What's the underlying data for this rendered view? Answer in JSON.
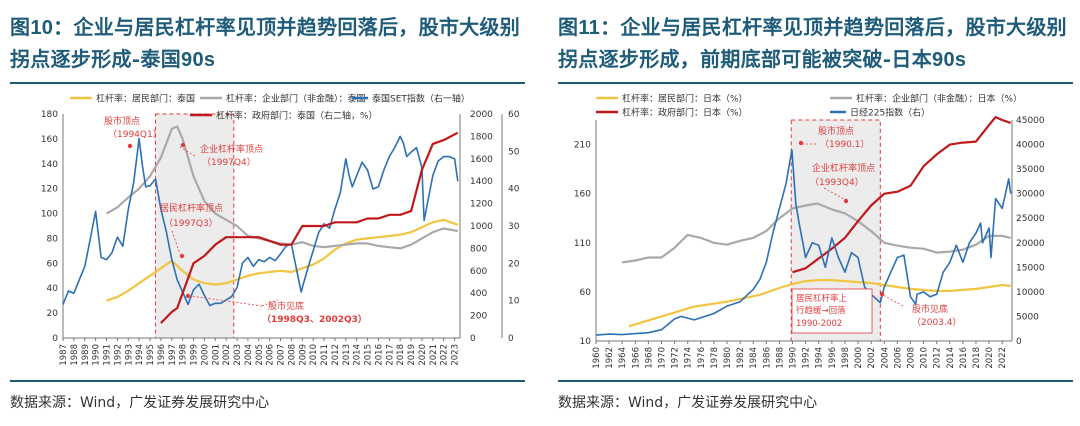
{
  "panels": [
    {
      "title_prefix": "图",
      "title_num": "10",
      "title_text": "：企业与居民杠杆率见顶并趋势回落后，股市大级别拐点逐步形成-泰国",
      "title_bold_tail": "90s",
      "source": "数据来源：Wind，广发证券发展研究中心"
    },
    {
      "title_prefix": "图",
      "title_num": "11",
      "title_text": "：企业与居民杠杆率见顶并趋势回落后，股市大级别拐点逐步形成，前期底部可能被突破-日本",
      "title_bold_tail": "90s",
      "source": "数据来源：Wind，广发证券发展研究中心"
    }
  ],
  "colors": {
    "household": "#f1c542",
    "corporate": "#a9a9a9",
    "government": "#c0181b",
    "index": "#2c70b5",
    "annotation": "#e33b3b"
  },
  "chart_data": [
    {
      "type": "line",
      "legend": [
        "杠杆率：居民部门：泰国",
        "杠杆率：企业部门（非金融）：泰国",
        "泰国SET指数（右一轴）",
        "杠杆率：政府部门：泰国（右二轴，%）"
      ],
      "x_ticks": [
        "1987",
        "1988",
        "1989",
        "1990",
        "1991",
        "1992",
        "1993",
        "1994",
        "1995",
        "1996",
        "1997",
        "1998",
        "1999",
        "2000",
        "2001",
        "2002",
        "2003",
        "2004",
        "2005",
        "2006",
        "2007",
        "2008",
        "2009",
        "2010",
        "2011",
        "2012",
        "2013",
        "2014",
        "2015",
        "2016",
        "2017",
        "2018",
        "2019",
        "2020",
        "2021",
        "2022",
        "2023"
      ],
      "xlim": [
        1987,
        2023.5
      ],
      "y_left": {
        "ticks": [
          "0",
          "20",
          "40",
          "60",
          "80",
          "100",
          "120",
          "140",
          "160",
          "180"
        ],
        "lim": [
          0,
          180
        ]
      },
      "y_right1": {
        "ticks": [
          "0",
          "200",
          "400",
          "600",
          "800",
          "1000",
          "1200",
          "1400",
          "1600",
          "1800",
          "2000"
        ],
        "lim": [
          0,
          2000
        ]
      },
      "y_right2": {
        "ticks": [
          "0",
          "10",
          "20",
          "30",
          "40",
          "50",
          "60"
        ],
        "lim": [
          0,
          60
        ]
      },
      "shade_x": [
        1995.5,
        2002.7
      ],
      "series": [
        {
          "name": "杠杆率：居民部门：泰国",
          "axis": "left",
          "color": "household",
          "x": [
            1991,
            1992,
            1993,
            1994,
            1995,
            1996,
            1997,
            1998,
            1999,
            2000,
            2001,
            2002,
            2003,
            2004,
            2005,
            2006,
            2007,
            2008,
            2009,
            2010,
            2011,
            2012,
            2013,
            2014,
            2015,
            2016,
            2017,
            2018,
            2019,
            2020,
            2021,
            2022,
            2023.3
          ],
          "y": [
            30,
            33,
            38,
            44,
            50,
            56,
            62,
            54,
            47,
            44,
            43,
            44,
            47,
            50,
            52,
            53,
            54,
            53,
            56,
            59,
            64,
            71,
            76,
            79,
            80,
            81,
            82,
            83,
            85,
            89,
            93,
            95,
            91
          ]
        },
        {
          "name": "杠杆率：企业部门（非金融）：泰国",
          "axis": "left",
          "color": "corporate",
          "x": [
            1991,
            1992,
            1993,
            1994,
            1995,
            1996,
            1997,
            1997.5,
            1998,
            1999,
            2000,
            2001,
            2002,
            2003,
            2004,
            2005,
            2006,
            2007,
            2008,
            2009,
            2010,
            2011,
            2012,
            2013,
            2014,
            2015,
            2016,
            2017,
            2018,
            2019,
            2020,
            2021,
            2022,
            2023.3
          ],
          "y": [
            100,
            105,
            113,
            120,
            130,
            145,
            168,
            170,
            160,
            130,
            110,
            100,
            95,
            90,
            82,
            80,
            78,
            76,
            75,
            77,
            74,
            73,
            74,
            75,
            76,
            76,
            74,
            73,
            72,
            75,
            80,
            85,
            88,
            86
          ]
        },
        {
          "name": "泰国SET指数（右一轴）",
          "axis": "right1",
          "color": "index",
          "x": [
            1987,
            1987.5,
            1988,
            1988.5,
            1989,
            1989.5,
            1990,
            1990.5,
            1991,
            1991.5,
            1992,
            1992.5,
            1993,
            1993.5,
            1994,
            1994.3,
            1994.6,
            1995,
            1995.5,
            1996,
            1996.5,
            1997,
            1997.5,
            1998,
            1998.5,
            1999,
            1999.5,
            2000,
            2000.5,
            2001,
            2001.5,
            2002,
            2002.5,
            2003,
            2003.5,
            2004,
            2004.5,
            2005,
            2005.5,
            2006,
            2006.5,
            2007,
            2007.5,
            2008,
            2008.5,
            2008.9,
            2009,
            2009.5,
            2010,
            2010.5,
            2011,
            2011.5,
            2012,
            2012.5,
            2013,
            2013.3,
            2013.6,
            2014,
            2014.5,
            2015,
            2015.5,
            2016,
            2016.5,
            2017,
            2017.5,
            2018,
            2018.3,
            2018.6,
            2019,
            2019.5,
            2020,
            2020.2,
            2020.5,
            2021,
            2021.5,
            2022,
            2022.5,
            2023,
            2023.3
          ],
          "y": [
            300,
            420,
            400,
            520,
            640,
            880,
            1130,
            720,
            700,
            760,
            900,
            820,
            1150,
            1390,
            1780,
            1540,
            1350,
            1360,
            1420,
            1150,
            950,
            700,
            520,
            410,
            300,
            430,
            480,
            380,
            290,
            310,
            310,
            340,
            370,
            450,
            670,
            720,
            640,
            700,
            680,
            720,
            690,
            750,
            820,
            840,
            600,
            410,
            450,
            620,
            780,
            940,
            1020,
            980,
            1150,
            1300,
            1600,
            1450,
            1350,
            1450,
            1570,
            1500,
            1330,
            1350,
            1500,
            1620,
            1700,
            1800,
            1740,
            1620,
            1660,
            1700,
            1520,
            1050,
            1200,
            1450,
            1580,
            1620,
            1620,
            1600,
            1400
          ]
        },
        {
          "name": "杠杆率：政府部门：泰国（右二轴，%）",
          "axis": "right2",
          "color": "government",
          "x": [
            1996,
            1997,
            1997.5,
            1998,
            1998.5,
            1999,
            2000,
            2001,
            2002,
            2003,
            2004,
            2005,
            2006,
            2007,
            2008,
            2009,
            2010,
            2011,
            2012,
            2013,
            2014,
            2015,
            2016,
            2017,
            2018,
            2019,
            2020,
            2021,
            2022,
            2023.3
          ],
          "y": [
            4,
            7,
            8,
            12,
            16,
            20,
            22,
            25,
            27,
            27,
            27,
            27,
            26,
            25,
            25,
            30,
            30,
            30,
            31,
            31,
            31,
            32,
            32,
            33,
            33,
            34,
            45,
            52,
            53,
            55
          ]
        }
      ],
      "annotations": [
        {
          "text": "股市顶点",
          "year": "1994Q1"
        },
        {
          "text": "企业杠杆率顶点",
          "year": "1997Q4"
        },
        {
          "text": "居民杠杆率顶点",
          "year": "1997Q3"
        },
        {
          "text": "股市见底",
          "year": "1998Q3、2002Q3"
        }
      ]
    },
    {
      "type": "line",
      "legend": [
        "杠杆率：居民部门：日本（%）",
        "杠杆率：企业部门（非金融）：日本（%）",
        "杠杆率：政府部门：日本（%）",
        "日经225指数（右）"
      ],
      "x_ticks": [
        "1960",
        "1962",
        "1964",
        "1966",
        "1968",
        "1970",
        "1972",
        "1974",
        "1976",
        "1978",
        "1980",
        "1982",
        "1984",
        "1986",
        "1988",
        "1990",
        "1992",
        "1994",
        "1996",
        "1998",
        "2000",
        "2002",
        "2004",
        "2006",
        "2008",
        "2010",
        "2012",
        "2014",
        "2016",
        "2018",
        "2020",
        "2022"
      ],
      "xlim": [
        1960,
        2023.5
      ],
      "y_left": {
        "ticks": [
          "10",
          "60",
          "110",
          "160",
          "210"
        ],
        "lim": [
          10,
          235
        ]
      },
      "y_right1": {
        "ticks": [
          "0",
          "5000",
          "10000",
          "15000",
          "20000",
          "25000",
          "30000",
          "35000",
          "40000",
          "45000"
        ],
        "lim": [
          0,
          45000
        ]
      },
      "shade_x": [
        1989.8,
        2003.4
      ],
      "series": [
        {
          "name": "杠杆率：居民部门：日本（%）",
          "axis": "left",
          "color": "household",
          "x": [
            1965,
            1970,
            1975,
            1980,
            1985,
            1988,
            1990,
            1992,
            1994,
            1996,
            1998,
            2000,
            2002,
            2004,
            2006,
            2008,
            2010,
            2012,
            2014,
            2016,
            2018,
            2020,
            2022,
            2023.3
          ],
          "y": [
            25,
            35,
            45,
            50,
            57,
            64,
            68,
            71,
            72,
            72,
            71,
            70,
            69,
            67,
            65,
            63,
            62,
            61,
            61,
            62,
            63,
            65,
            67,
            66
          ]
        },
        {
          "name": "杠杆率：企业部门（非金融）：日本（%）",
          "axis": "left",
          "color": "corporate",
          "x": [
            1964,
            1966,
            1968,
            1970,
            1972,
            1974,
            1976,
            1978,
            1980,
            1982,
            1984,
            1986,
            1988,
            1990,
            1992,
            1993.8,
            1996,
            1998,
            2000,
            2002,
            2004,
            2006,
            2008,
            2010,
            2012,
            2014,
            2016,
            2018,
            2020,
            2022,
            2023.3
          ],
          "y": [
            90,
            92,
            95,
            95,
            105,
            118,
            115,
            110,
            108,
            112,
            115,
            122,
            135,
            145,
            148,
            150,
            144,
            140,
            132,
            122,
            110,
            107,
            105,
            104,
            100,
            101,
            103,
            108,
            117,
            117,
            115
          ]
        },
        {
          "name": "杠杆率：政府部门：日本（%）",
          "axis": "left",
          "color": "government",
          "x": [
            1990,
            1992,
            1994,
            1996,
            1998,
            2000,
            2002,
            2004,
            2006,
            2008,
            2010,
            2012,
            2014,
            2016,
            2018,
            2020,
            2021,
            2022,
            2023.3
          ],
          "y": [
            80,
            84,
            94,
            104,
            115,
            132,
            148,
            160,
            162,
            168,
            188,
            200,
            210,
            212,
            213,
            230,
            238,
            235,
            232
          ]
        },
        {
          "name": "日经225指数（右）",
          "axis": "right1",
          "color": "index",
          "x": [
            1960,
            1962,
            1964,
            1966,
            1968,
            1970,
            1972,
            1973,
            1975,
            1978,
            1980,
            1982,
            1984,
            1985,
            1986,
            1987,
            1988,
            1989,
            1989.9,
            1990.5,
            1991,
            1992,
            1993,
            1994,
            1995,
            1996,
            1997,
            1998,
            1999,
            2000,
            2001,
            2002,
            2003.4,
            2004,
            2005,
            2006,
            2007,
            2008,
            2008.8,
            2009,
            2010,
            2011,
            2012,
            2013,
            2014,
            2015,
            2016,
            2017,
            2018,
            2018.7,
            2019,
            2020,
            2020.3,
            2021,
            2022,
            2023,
            2023.3
          ],
          "y": [
            1200,
            1400,
            1300,
            1500,
            1700,
            2300,
            4500,
            5000,
            4300,
            5600,
            7100,
            8000,
            10500,
            12500,
            16000,
            22000,
            27000,
            32000,
            38900,
            28000,
            24000,
            17000,
            20000,
            19500,
            15000,
            21000,
            17000,
            14000,
            18000,
            17000,
            11000,
            9500,
            7800,
            11000,
            14000,
            17000,
            17500,
            9000,
            7500,
            9500,
            10000,
            9000,
            9500,
            14000,
            16000,
            19500,
            16000,
            20000,
            22000,
            24000,
            20000,
            23000,
            17000,
            29000,
            27000,
            33000,
            30000
          ]
        }
      ],
      "annotations": [
        {
          "text": "股市顶点",
          "year": "1990.1"
        },
        {
          "text": "企业杠杆率顶点",
          "year": "1993Q4"
        },
        {
          "text": "居民杠杆率上行趋缓→回落",
          "year": "1990-2002"
        },
        {
          "text": "股市见底",
          "year": "2003.4"
        }
      ]
    }
  ]
}
